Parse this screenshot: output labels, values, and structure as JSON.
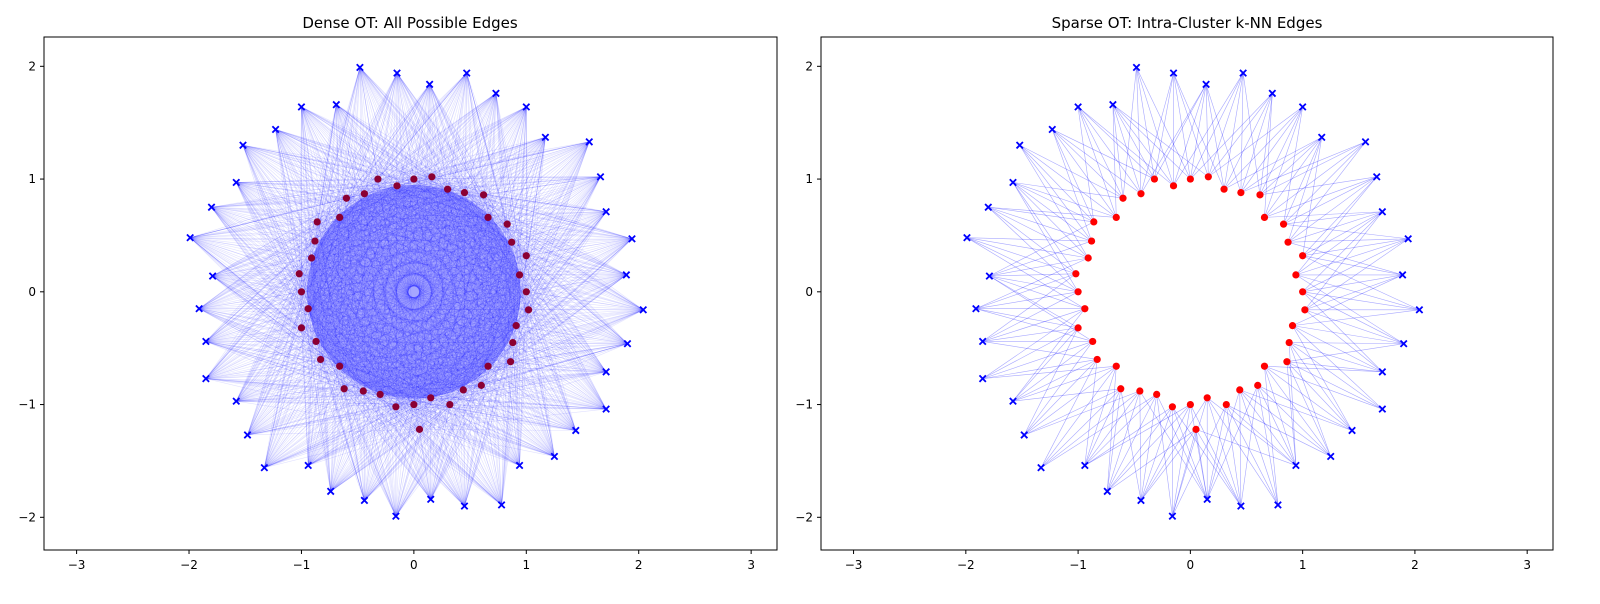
{
  "chart_data": [
    {
      "type": "scatter",
      "title": "Dense OT: All Possible Edges",
      "xlim": [
        -3.29,
        3.23
      ],
      "ylim": [
        -2.29,
        2.26
      ],
      "xticks": [
        "−3",
        "−2",
        "−1",
        "0",
        "1",
        "2",
        "3"
      ],
      "yticks": [
        "−2",
        "−1",
        "0",
        "1",
        "2"
      ],
      "xtick_values": [
        -3,
        -2,
        -1,
        0,
        1,
        2,
        3
      ],
      "ytick_values": [
        -2,
        -1,
        0,
        1,
        2
      ],
      "grid": false,
      "edges": "all",
      "edge_color": "#0000ff",
      "source_color": "#0000ff",
      "source_marker": "x",
      "target_color": "#8b0033",
      "target_marker": "o"
    },
    {
      "type": "scatter",
      "title": "Sparse OT: Intra-Cluster k-NN Edges",
      "xlim": [
        -3.29,
        3.23
      ],
      "ylim": [
        -2.29,
        2.26
      ],
      "xticks": [
        "−3",
        "−2",
        "−1",
        "0",
        "1",
        "2",
        "3"
      ],
      "yticks": [
        "−2",
        "−1",
        "0",
        "1",
        "2"
      ],
      "xtick_values": [
        -3,
        -2,
        -1,
        0,
        1,
        2,
        3
      ],
      "ytick_values": [
        -2,
        -1,
        0,
        1,
        2
      ],
      "grid": false,
      "edges": "knn",
      "k": 6,
      "edge_color": "#0000ff",
      "source_color": "#0000ff",
      "source_marker": "x",
      "target_color": "#ff0000",
      "target_marker": "o"
    }
  ],
  "points": {
    "sources": [
      [
        1.89,
        0.15
      ],
      [
        1.94,
        0.47
      ],
      [
        1.71,
        0.71
      ],
      [
        1.66,
        1.02
      ],
      [
        1.56,
        1.33
      ],
      [
        1.17,
        1.37
      ],
      [
        1.0,
        1.64
      ],
      [
        0.73,
        1.76
      ],
      [
        0.47,
        1.94
      ],
      [
        0.14,
        1.84
      ],
      [
        -0.15,
        1.94
      ],
      [
        -0.48,
        1.99
      ],
      [
        -0.69,
        1.66
      ],
      [
        -1.0,
        1.64
      ],
      [
        -1.23,
        1.44
      ],
      [
        -1.52,
        1.3
      ],
      [
        -1.58,
        0.97
      ],
      [
        -1.8,
        0.75
      ],
      [
        -1.99,
        0.48
      ],
      [
        -1.79,
        0.14
      ],
      [
        -1.91,
        -0.15
      ],
      [
        -1.85,
        -0.44
      ],
      [
        -1.85,
        -0.77
      ],
      [
        -1.58,
        -0.97
      ],
      [
        -1.48,
        -1.27
      ],
      [
        -1.33,
        -1.56
      ],
      [
        -0.94,
        -1.54
      ],
      [
        -0.74,
        -1.77
      ],
      [
        -0.44,
        -1.85
      ],
      [
        -0.16,
        -1.99
      ],
      [
        0.15,
        -1.84
      ],
      [
        0.45,
        -1.9
      ],
      [
        0.78,
        -1.89
      ],
      [
        0.94,
        -1.54
      ],
      [
        1.25,
        -1.46
      ],
      [
        1.44,
        -1.23
      ],
      [
        1.71,
        -1.04
      ],
      [
        1.71,
        -0.71
      ],
      [
        1.9,
        -0.46
      ],
      [
        2.04,
        -0.16
      ]
    ],
    "targets": [
      [
        1.0,
        0.0
      ],
      [
        0.94,
        0.15
      ],
      [
        1.0,
        0.32
      ],
      [
        0.87,
        0.44
      ],
      [
        0.83,
        0.6
      ],
      [
        0.66,
        0.66
      ],
      [
        0.62,
        0.86
      ],
      [
        0.45,
        0.88
      ],
      [
        0.3,
        0.91
      ],
      [
        0.16,
        1.02
      ],
      [
        0.0,
        1.0
      ],
      [
        -0.15,
        0.94
      ],
      [
        -0.32,
        1.0
      ],
      [
        -0.44,
        0.87
      ],
      [
        -0.6,
        0.83
      ],
      [
        -0.66,
        0.66
      ],
      [
        -0.86,
        0.62
      ],
      [
        -0.88,
        0.45
      ],
      [
        -0.91,
        0.3
      ],
      [
        -1.02,
        0.16
      ],
      [
        -1.0,
        0.0
      ],
      [
        -0.94,
        -0.15
      ],
      [
        -1.0,
        -0.32
      ],
      [
        -0.87,
        -0.44
      ],
      [
        -0.83,
        -0.6
      ],
      [
        -0.66,
        -0.66
      ],
      [
        -0.62,
        -0.86
      ],
      [
        -0.45,
        -0.88
      ],
      [
        -0.3,
        -0.91
      ],
      [
        -0.16,
        -1.02
      ],
      [
        0.0,
        -1.0
      ],
      [
        0.05,
        -1.22
      ],
      [
        0.15,
        -0.94
      ],
      [
        0.32,
        -1.0
      ],
      [
        0.44,
        -0.87
      ],
      [
        0.6,
        -0.83
      ],
      [
        0.66,
        -0.66
      ],
      [
        0.86,
        -0.62
      ],
      [
        0.88,
        -0.45
      ],
      [
        0.91,
        -0.3
      ],
      [
        1.02,
        -0.16
      ]
    ]
  }
}
